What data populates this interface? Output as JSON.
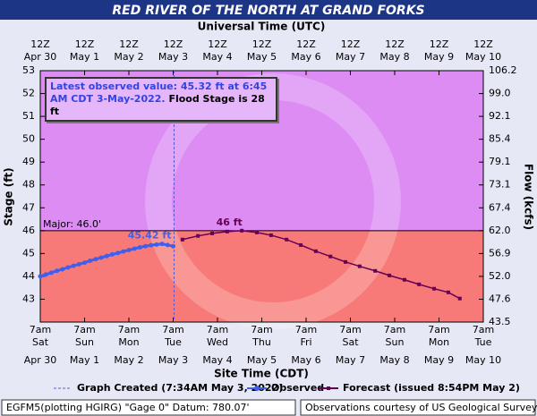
{
  "chart_data": {
    "type": "line",
    "title": "RED RIVER OF THE NORTH AT GRAND FORKS",
    "top_axis_title": "Universal Time (UTC)",
    "x_label": "Site Time (CDT)",
    "y_label": "Stage (ft)",
    "y2_label": "Flow (kcfs)",
    "xlim": [
      0,
      10
    ],
    "ylim": [
      42,
      53
    ],
    "yticks": [
      43,
      44,
      45,
      46,
      47,
      48,
      49,
      50,
      51,
      52,
      53
    ],
    "y2lim": [
      43.5,
      106.2
    ],
    "y2ticks": [
      43.5,
      47.6,
      {
        "value": 52,
        "label": "52.0"
      },
      56.9,
      {
        "value": 62,
        "label": "62.0"
      },
      67.4,
      73.1,
      79.1,
      85.4,
      92.1,
      {
        "value": 99,
        "label": "99.0"
      },
      106.2
    ],
    "xticks_bottom": [
      {
        "value": 0,
        "time": "7am",
        "weekday": "Sat",
        "date": "Apr 30"
      },
      {
        "value": 1,
        "time": "7am",
        "weekday": "Sun",
        "date": "May 1"
      },
      {
        "value": 2,
        "time": "7am",
        "weekday": "Mon",
        "date": "May 2"
      },
      {
        "value": 3,
        "time": "7am",
        "weekday": "Tue",
        "date": "May 3"
      },
      {
        "value": 4,
        "time": "7am",
        "weekday": "Wed",
        "date": "May 4"
      },
      {
        "value": 5,
        "time": "7am",
        "weekday": "Thu",
        "date": "May 5"
      },
      {
        "value": 6,
        "time": "7am",
        "weekday": "Fri",
        "date": "May 6"
      },
      {
        "value": 7,
        "time": "7am",
        "weekday": "Sat",
        "date": "May 7"
      },
      {
        "value": 8,
        "time": "7am",
        "weekday": "Sun",
        "date": "May 8"
      },
      {
        "value": 9,
        "time": "7am",
        "weekday": "Mon",
        "date": "May 9"
      },
      {
        "value": 10,
        "time": "7am",
        "weekday": "Tue",
        "date": "May 10"
      }
    ],
    "xticks_top": [
      {
        "value": 0,
        "time": "12Z",
        "date": "Apr 30"
      },
      {
        "value": 1,
        "time": "12Z",
        "date": "May 1"
      },
      {
        "value": 2,
        "time": "12Z",
        "date": "May 2"
      },
      {
        "value": 3,
        "time": "12Z",
        "date": "May 3"
      },
      {
        "value": 4,
        "time": "12Z",
        "date": "May 4"
      },
      {
        "value": 5,
        "time": "12Z",
        "date": "May 5"
      },
      {
        "value": 6,
        "time": "12Z",
        "date": "May 6"
      },
      {
        "value": 7,
        "time": "12Z",
        "date": "May 7"
      },
      {
        "value": 8,
        "time": "12Z",
        "date": "May 8"
      },
      {
        "value": 9,
        "time": "12Z",
        "date": "May 9"
      },
      {
        "value": 10,
        "time": "12Z",
        "date": "May 10"
      }
    ],
    "major_stage": {
      "value": 46.0,
      "label": "Major: 46.0'"
    },
    "above_color": "#dc8cf2",
    "below_color": "#f87a78",
    "graph_created": {
      "x": 3.02,
      "label": "Graph Created (7:34AM May 3, 2022)",
      "color": "#5a5ad8"
    },
    "series": [
      {
        "name": "Observed",
        "color": "#3f5fee",
        "peak_label": "45.42 ft",
        "x": [
          0,
          0.125,
          0.25,
          0.375,
          0.5,
          0.625,
          0.75,
          0.875,
          1,
          1.125,
          1.25,
          1.375,
          1.5,
          1.625,
          1.75,
          1.875,
          2,
          2.125,
          2.25,
          2.375,
          2.5,
          2.625,
          2.75,
          2.875,
          3
        ],
        "values": [
          44.0,
          44.08,
          44.16,
          44.24,
          44.31,
          44.39,
          44.46,
          44.53,
          44.6,
          44.68,
          44.75,
          44.82,
          44.89,
          44.96,
          45.02,
          45.09,
          45.15,
          45.21,
          45.27,
          45.32,
          45.36,
          45.39,
          45.42,
          45.37,
          45.32
        ]
      },
      {
        "name": "Forecast (issued 8:54PM May 2)",
        "color": "#660055",
        "peak_label": "46 ft",
        "x": [
          3.21,
          3.56,
          3.88,
          4.22,
          4.55,
          4.89,
          5.21,
          5.56,
          5.88,
          6.22,
          6.55,
          6.89,
          7.21,
          7.56,
          7.88,
          8.22,
          8.55,
          8.89,
          9.21,
          9.47
        ],
        "values": [
          45.61,
          45.77,
          45.88,
          45.96,
          46.0,
          45.92,
          45.8,
          45.61,
          45.37,
          45.1,
          44.87,
          44.63,
          44.44,
          44.24,
          44.04,
          43.85,
          43.65,
          43.46,
          43.3,
          43.03
        ]
      }
    ],
    "info_box": {
      "text": "Latest observed value:  45.32  ft at 6:45 AM CDT 3-May-2022.",
      "flood_stage": "Flood Stage is 28 ft"
    },
    "footer_left": "EGFM5(plotting HGIRG) \"Gage 0\" Datum: 780.07'",
    "footer_right": "Observations courtesy of US Geological Survey"
  }
}
